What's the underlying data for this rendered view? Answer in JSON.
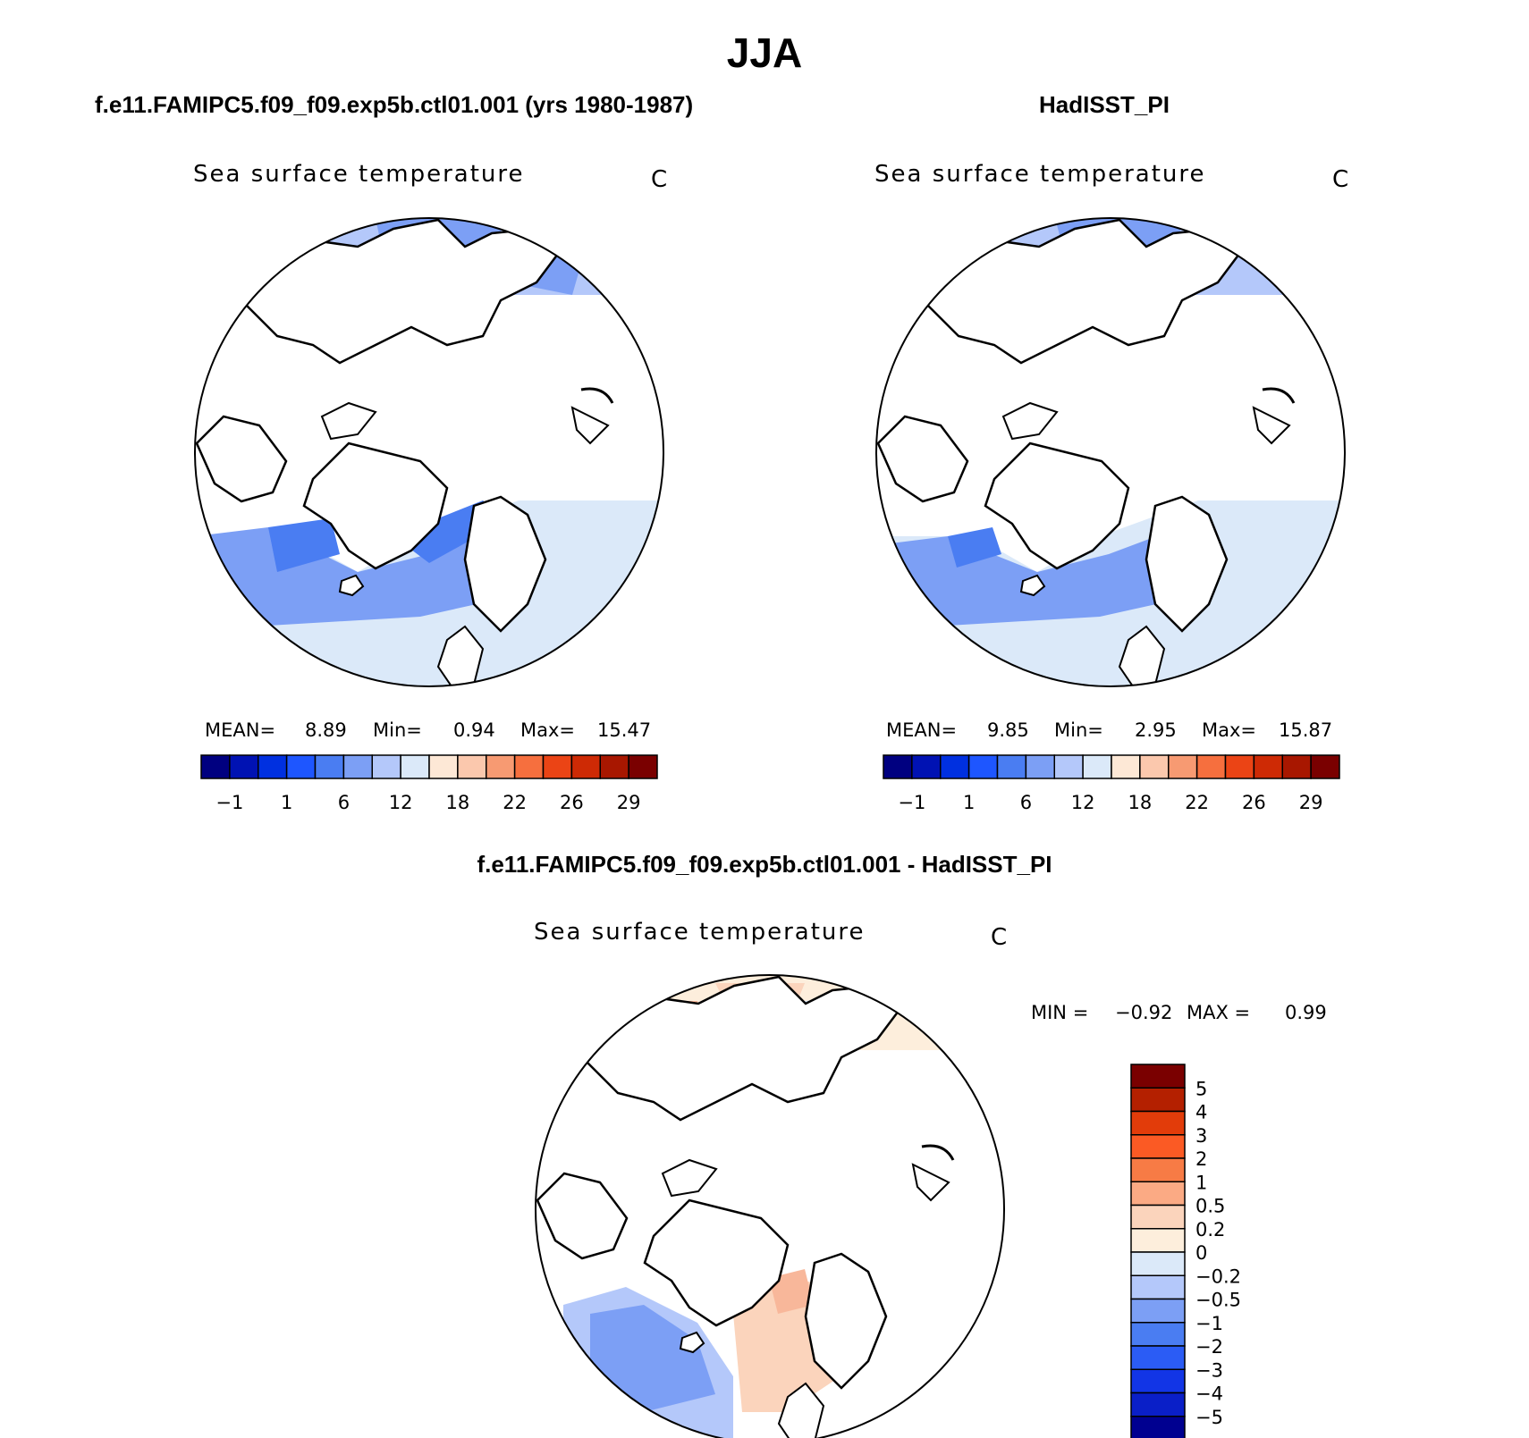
{
  "title": "JJA",
  "panels": [
    {
      "heading": "f.e11.FAMIPC5.f09_f09.exp5b.ctl01.001 (yrs 1980-1987)",
      "variable": "Sea surface temperature",
      "units": "C",
      "stats": {
        "mean_label": "MEAN=",
        "mean": "8.89",
        "min_label": "Min=",
        "min": "0.94",
        "max_label": "Max=",
        "max": "15.47"
      }
    },
    {
      "heading": "HadISST_PI",
      "variable": "Sea surface temperature",
      "units": "C",
      "stats": {
        "mean_label": "MEAN=",
        "mean": "9.85",
        "min_label": "Min=",
        "min": "2.95",
        "max_label": "Max=",
        "max": "15.87"
      }
    }
  ],
  "diff": {
    "heading": "f.e11.FAMIPC5.f09_f09.exp5b.ctl01.001 - HadISST_PI",
    "variable": "Sea surface temperature",
    "units": "C",
    "stats": {
      "min_label": "MIN =",
      "min": "−0.92",
      "max_label": "MAX =",
      "max": "0.99"
    }
  },
  "colorbar_main": {
    "colors": [
      "#000080",
      "#0012b3",
      "#0030e0",
      "#1e56ff",
      "#4a7df2",
      "#7c9ff5",
      "#b4c8fa",
      "#dbe9f9",
      "#fde8d6",
      "#fbc8ad",
      "#f79a72",
      "#f66f3e",
      "#eb4415",
      "#ce2a05",
      "#a81700",
      "#7a0000"
    ],
    "labels": [
      "−1",
      "1",
      "6",
      "12",
      "18",
      "22",
      "26",
      "29"
    ]
  },
  "colorbar_diff": {
    "colors": [
      "#7a0000",
      "#b42000",
      "#e23c0a",
      "#fb5a24",
      "#f77b45",
      "#fbaa84",
      "#fbd4bc",
      "#fdeedc",
      "#dbe9f9",
      "#b4c8fa",
      "#7c9ff5",
      "#4a7df2",
      "#2b5cf5",
      "#1235e6",
      "#0a1fc8",
      "#000090"
    ],
    "labels": [
      "5",
      "4",
      "3",
      "2",
      "1",
      "0.5",
      "0.2",
      "0",
      "−0.2",
      "−0.5",
      "−1",
      "−2",
      "−3",
      "−4",
      "−5"
    ]
  }
}
